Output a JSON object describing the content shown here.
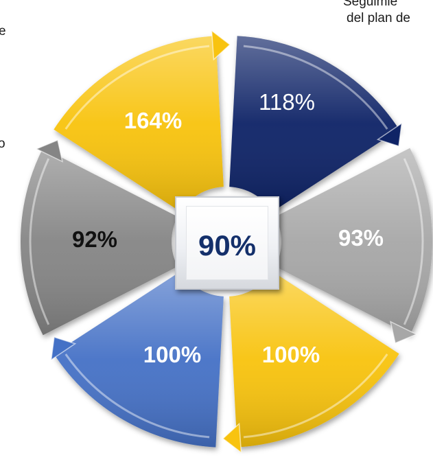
{
  "side_texts": {
    "top_right_line1": "Seguimie",
    "top_right_line2": "del plan de",
    "left_fragment_1": "e",
    "left_fragment_2": "o"
  },
  "center": {
    "value": "90%"
  },
  "segments": [
    {
      "id": "top-right",
      "value": "118%",
      "color": "#0f2466",
      "text_color": "#ffffff",
      "bold": false
    },
    {
      "id": "right",
      "value": "93%",
      "color": "#a7a7a7",
      "text_color": "#ffffff",
      "bold": true
    },
    {
      "id": "bottom-right",
      "value": "100%",
      "color": "#f8c310",
      "text_color": "#ffffff",
      "bold": true
    },
    {
      "id": "bottom-left",
      "value": "100%",
      "color": "#4471c6",
      "text_color": "#ffffff",
      "bold": true
    },
    {
      "id": "left",
      "value": "92%",
      "color": "#858585",
      "text_color": "#111111",
      "bold": true
    },
    {
      "id": "top-left",
      "value": "164%",
      "color": "#f8c310",
      "text_color": "#ffffff",
      "bold": true
    }
  ]
}
